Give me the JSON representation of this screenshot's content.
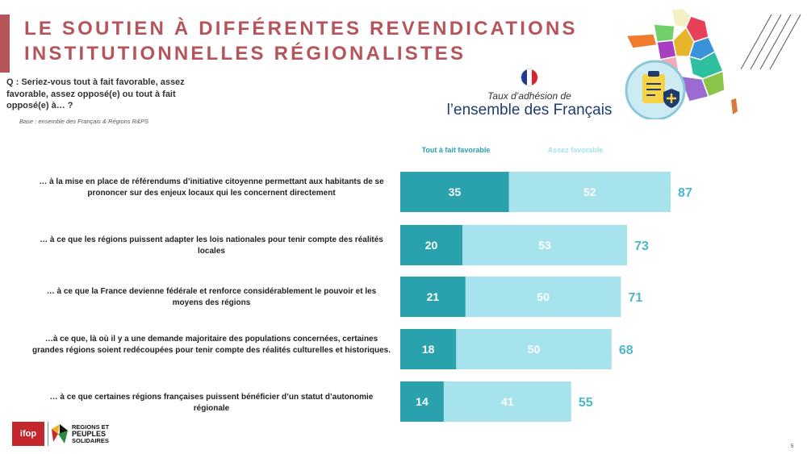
{
  "title": "LE SOUTIEN À DIFFÉRENTES REVENDICATIONS INSTITUTIONNELLES RÉGIONALISTES",
  "question": "Q : Seriez-vous tout à fait favorable, assez favorable, assez opposé(e) ou tout à fait opposé(e) à… ?",
  "base": "Base : ensemble des Français & Régions R&PS",
  "header": {
    "taux": "Taux d’adhésion de",
    "ensemble": "l’ensemble des Français"
  },
  "logos": {
    "ifop": "ifop",
    "rps_line1": "REGIONS ET",
    "rps_line2": "PEUPLES",
    "rps_line3": "SOLIDAIRES"
  },
  "page_number": "5",
  "colors": {
    "accent": "#b5555a",
    "tout_a_fait": "#2aa2ad",
    "assez": "#a6e3ec",
    "total_text": "#4bb8c8",
    "navy": "#1f3c6e"
  },
  "chart_data": {
    "type": "bar",
    "orientation": "horizontal",
    "stacked": true,
    "categories": [
      "… à la mise en place de référendums d’initiative citoyenne permettant aux habitants de se prononcer sur des enjeux locaux qui les concernent directement",
      "… à ce que les régions puissent adapter les lois nationales pour tenir compte des réalités locales",
      "… à ce que la France devienne fédérale et renforce considérablement le pouvoir et les moyens des régions",
      "…à ce que, là où il y a une demande majoritaire des populations concernées, certaines grandes régions soient redécoupées pour tenir compte des réalités culturelles et historiques.",
      "… à ce que certaines régions françaises puissent bénéficier d’un statut d’autonomie régionale"
    ],
    "series": [
      {
        "name": "Tout à fait favorable",
        "values": [
          35,
          20,
          21,
          18,
          14
        ],
        "color": "#2aa2ad"
      },
      {
        "name": "Assez favorable",
        "values": [
          52,
          53,
          50,
          50,
          41
        ],
        "color": "#a6e3ec"
      }
    ],
    "totals": [
      87,
      73,
      71,
      68,
      55
    ],
    "legend": "top",
    "grid": false
  }
}
